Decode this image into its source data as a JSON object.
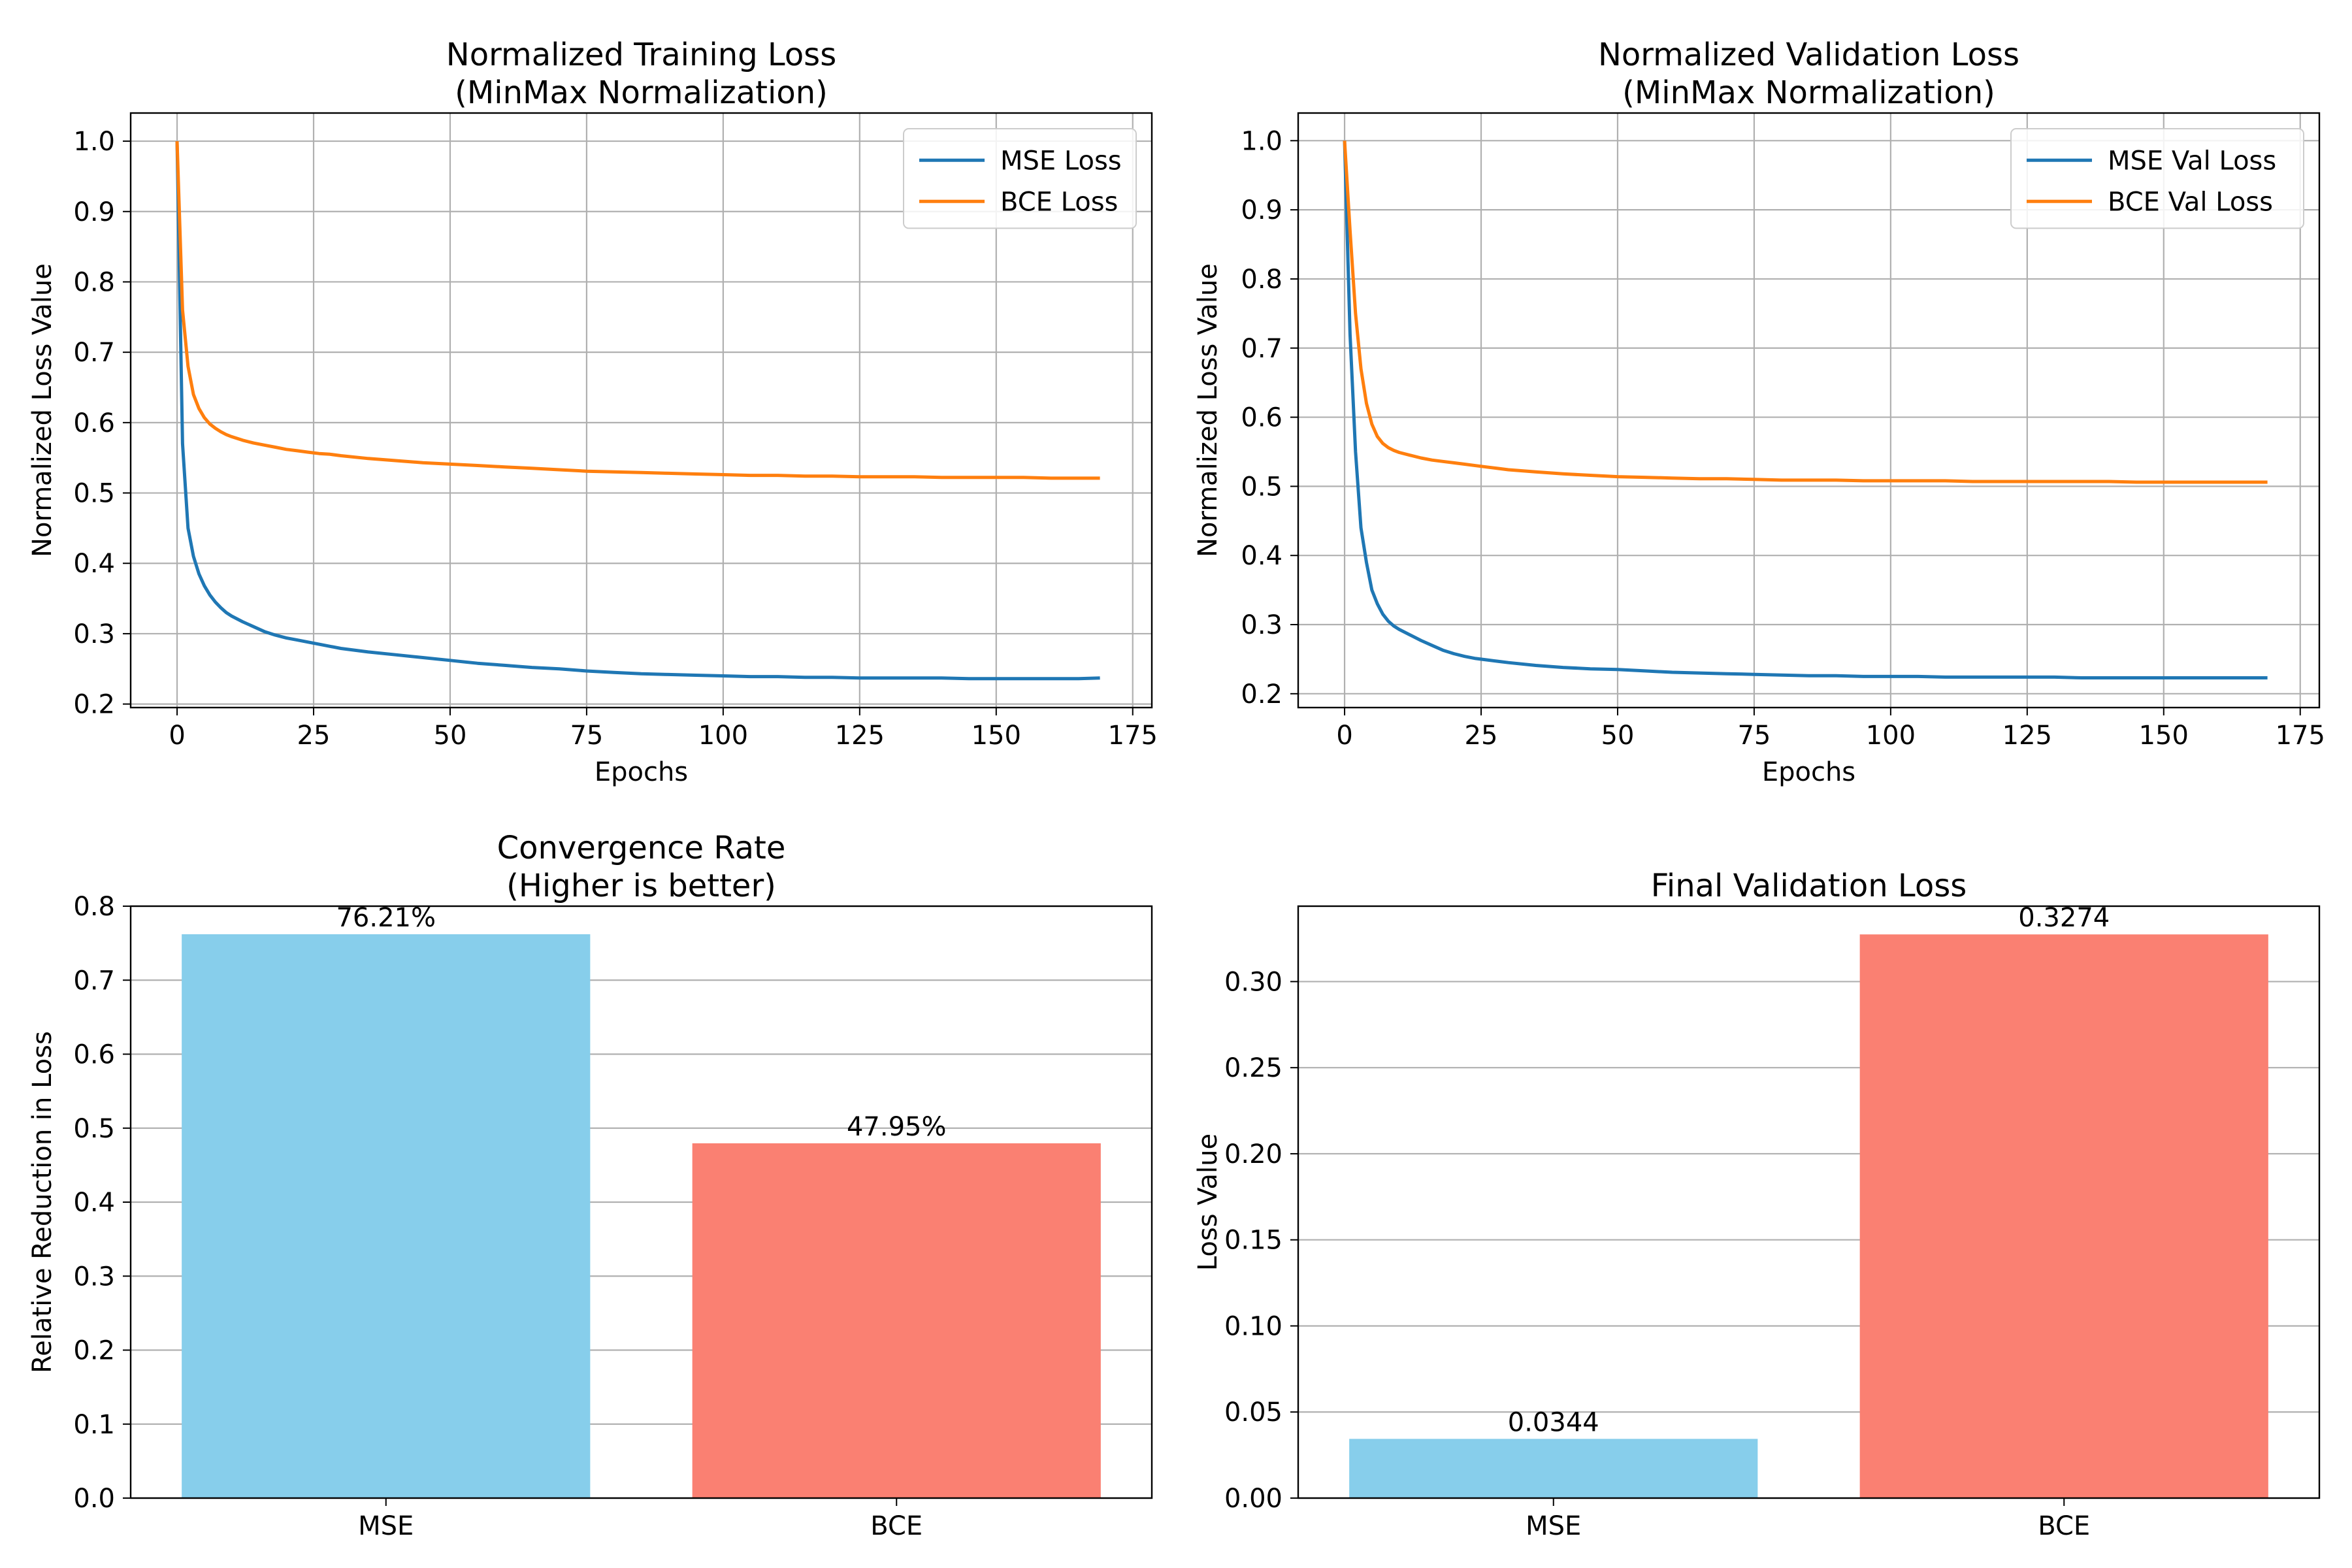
{
  "figure": {
    "colors": {
      "mse_line": "#1f77b4",
      "bce_line": "#ff7f0e",
      "mse_bar": "#87ceeb",
      "bce_bar": "#fa8072",
      "grid": "#b0b0b0"
    }
  },
  "chart_data": [
    {
      "type": "line",
      "title": "Normalized Training Loss\n(MinMax Normalization)",
      "xlabel": "Epochs",
      "ylabel": "Normalized Loss Value",
      "xlim": [
        -8.5,
        178.5
      ],
      "ylim": [
        0.195,
        1.04
      ],
      "xticks": [
        0,
        25,
        50,
        75,
        100,
        125,
        150,
        175
      ],
      "yticks": [
        0.2,
        0.3,
        0.4,
        0.5,
        0.6,
        0.7,
        0.8,
        0.9,
        1.0
      ],
      "ytick_decimals": 1,
      "grid": true,
      "legend": "top-right",
      "series": [
        {
          "name": "MSE Loss",
          "color": "#1f77b4",
          "x": [
            0,
            1,
            2,
            3,
            4,
            5,
            6,
            7,
            8,
            9,
            10,
            12,
            14,
            16,
            18,
            20,
            22,
            24,
            26,
            28,
            30,
            35,
            40,
            45,
            50,
            55,
            60,
            65,
            70,
            75,
            80,
            85,
            90,
            95,
            100,
            105,
            110,
            115,
            120,
            125,
            130,
            135,
            140,
            145,
            150,
            155,
            160,
            165,
            169
          ],
          "y": [
            1.0,
            0.57,
            0.45,
            0.41,
            0.385,
            0.368,
            0.355,
            0.345,
            0.337,
            0.33,
            0.325,
            0.317,
            0.31,
            0.303,
            0.298,
            0.294,
            0.291,
            0.288,
            0.285,
            0.282,
            0.279,
            0.274,
            0.27,
            0.266,
            0.262,
            0.258,
            0.255,
            0.252,
            0.25,
            0.247,
            0.245,
            0.243,
            0.242,
            0.241,
            0.24,
            0.239,
            0.239,
            0.238,
            0.238,
            0.237,
            0.237,
            0.237,
            0.237,
            0.236,
            0.236,
            0.236,
            0.236,
            0.236,
            0.237
          ]
        },
        {
          "name": "BCE Loss",
          "color": "#ff7f0e",
          "x": [
            0,
            1,
            2,
            3,
            4,
            5,
            6,
            7,
            8,
            9,
            10,
            12,
            14,
            16,
            18,
            20,
            22,
            24,
            26,
            28,
            30,
            35,
            40,
            45,
            50,
            55,
            60,
            65,
            70,
            75,
            80,
            85,
            90,
            95,
            100,
            105,
            110,
            115,
            120,
            125,
            130,
            135,
            140,
            145,
            150,
            155,
            160,
            165,
            169
          ],
          "y": [
            1.0,
            0.76,
            0.68,
            0.64,
            0.62,
            0.607,
            0.598,
            0.592,
            0.587,
            0.583,
            0.58,
            0.575,
            0.571,
            0.568,
            0.565,
            0.562,
            0.56,
            0.558,
            0.556,
            0.555,
            0.553,
            0.549,
            0.546,
            0.543,
            0.541,
            0.539,
            0.537,
            0.535,
            0.533,
            0.531,
            0.53,
            0.529,
            0.528,
            0.527,
            0.526,
            0.525,
            0.525,
            0.524,
            0.524,
            0.523,
            0.523,
            0.523,
            0.522,
            0.522,
            0.522,
            0.522,
            0.521,
            0.521,
            0.521
          ]
        }
      ]
    },
    {
      "type": "line",
      "title": "Normalized Validation Loss\n(MinMax Normalization)",
      "xlabel": "Epochs",
      "ylabel": "Normalized Loss Value",
      "xlim": [
        -8.5,
        178.5
      ],
      "ylim": [
        0.18,
        1.04
      ],
      "xticks": [
        0,
        25,
        50,
        75,
        100,
        125,
        150,
        175
      ],
      "yticks": [
        0.2,
        0.3,
        0.4,
        0.5,
        0.6,
        0.7,
        0.8,
        0.9,
        1.0
      ],
      "ytick_decimals": 1,
      "grid": true,
      "legend": "top-right",
      "series": [
        {
          "name": "MSE Val Loss",
          "color": "#1f77b4",
          "x": [
            0,
            1,
            2,
            3,
            4,
            5,
            6,
            7,
            8,
            9,
            10,
            12,
            14,
            16,
            18,
            20,
            22,
            24,
            26,
            28,
            30,
            35,
            40,
            45,
            50,
            55,
            60,
            65,
            70,
            75,
            80,
            85,
            90,
            95,
            100,
            105,
            110,
            115,
            120,
            125,
            130,
            135,
            140,
            145,
            150,
            155,
            160,
            165,
            169
          ],
          "y": [
            1.0,
            0.72,
            0.55,
            0.44,
            0.39,
            0.35,
            0.33,
            0.315,
            0.305,
            0.298,
            0.293,
            0.285,
            0.277,
            0.27,
            0.263,
            0.258,
            0.254,
            0.251,
            0.249,
            0.247,
            0.245,
            0.241,
            0.238,
            0.236,
            0.235,
            0.233,
            0.231,
            0.23,
            0.229,
            0.228,
            0.227,
            0.226,
            0.226,
            0.225,
            0.225,
            0.225,
            0.224,
            0.224,
            0.224,
            0.224,
            0.224,
            0.223,
            0.223,
            0.223,
            0.223,
            0.223,
            0.223,
            0.223,
            0.223
          ]
        },
        {
          "name": "BCE Val Loss",
          "color": "#ff7f0e",
          "x": [
            0,
            1,
            2,
            3,
            4,
            5,
            6,
            7,
            8,
            9,
            10,
            12,
            14,
            16,
            18,
            20,
            22,
            24,
            26,
            28,
            30,
            35,
            40,
            45,
            50,
            55,
            60,
            65,
            70,
            75,
            80,
            85,
            90,
            95,
            100,
            105,
            110,
            115,
            120,
            125,
            130,
            135,
            140,
            145,
            150,
            155,
            160,
            165,
            169
          ],
          "y": [
            1.0,
            0.87,
            0.75,
            0.67,
            0.62,
            0.59,
            0.572,
            0.562,
            0.556,
            0.552,
            0.549,
            0.545,
            0.541,
            0.538,
            0.536,
            0.534,
            0.532,
            0.53,
            0.528,
            0.526,
            0.524,
            0.521,
            0.518,
            0.516,
            0.514,
            0.513,
            0.512,
            0.511,
            0.511,
            0.51,
            0.509,
            0.509,
            0.509,
            0.508,
            0.508,
            0.508,
            0.508,
            0.507,
            0.507,
            0.507,
            0.507,
            0.507,
            0.507,
            0.506,
            0.506,
            0.506,
            0.506,
            0.506,
            0.506
          ]
        }
      ]
    },
    {
      "type": "bar",
      "title": "Convergence Rate\n(Higher is better)",
      "xlabel": "",
      "ylabel": "Relative Reduction in Loss",
      "categories": [
        "MSE",
        "BCE"
      ],
      "values": [
        0.7621,
        0.4795
      ],
      "data_labels": [
        "76.21%",
        "47.95%"
      ],
      "colors": [
        "#87ceeb",
        "#fa8072"
      ],
      "ylim": [
        0,
        0.8
      ],
      "yticks": [
        0.0,
        0.1,
        0.2,
        0.3,
        0.4,
        0.5,
        0.6,
        0.7,
        0.8
      ],
      "ytick_decimals": 1,
      "grid": "y"
    },
    {
      "type": "bar",
      "title": "Final Validation Loss",
      "xlabel": "",
      "ylabel": "Loss Value",
      "categories": [
        "MSE",
        "BCE"
      ],
      "values": [
        0.0344,
        0.3274
      ],
      "data_labels": [
        "0.0344",
        "0.3274"
      ],
      "colors": [
        "#87ceeb",
        "#fa8072"
      ],
      "ylim": [
        0,
        0.3438
      ],
      "yticks": [
        0.0,
        0.05,
        0.1,
        0.15,
        0.2,
        0.25,
        0.3
      ],
      "ytick_decimals": 2,
      "grid": "y"
    }
  ]
}
